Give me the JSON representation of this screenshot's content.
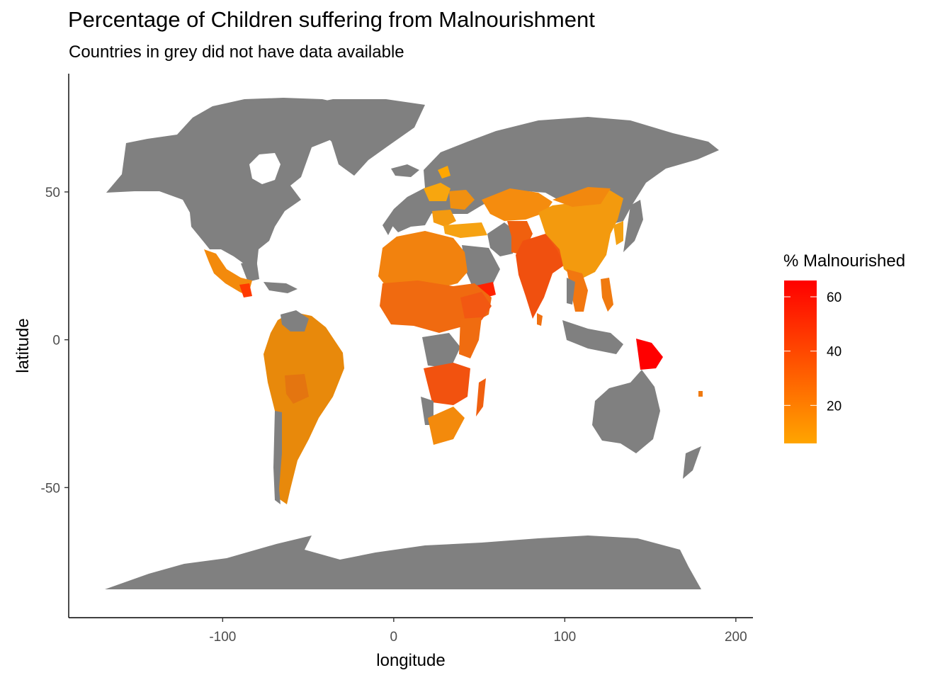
{
  "title": "Percentage of Children suffering from Malnourishment",
  "subtitle": "Countries in grey did not have data available",
  "colors": {
    "no_data": "#808080",
    "scale_low": "#FFA500",
    "scale_high": "#FF0000",
    "axis": "#000000",
    "tick_text": "#4d4d4d"
  },
  "chart_data": {
    "type": "map",
    "xlabel": "longitude",
    "ylabel": "latitude",
    "xlim": [
      -190,
      210
    ],
    "ylim": [
      -94,
      90
    ],
    "x_ticks": [
      -100,
      0,
      100,
      200
    ],
    "y_ticks": [
      50,
      0,
      -50
    ],
    "x_tick_labels": [
      "-100",
      "0",
      "100",
      "200"
    ],
    "y_tick_labels": [
      "50",
      "0",
      "-50"
    ],
    "grid": false,
    "legend": {
      "title": "% Malnourished",
      "placement": "right",
      "range": [
        6,
        66
      ],
      "ticks": [
        60,
        40,
        20
      ],
      "tick_labels": [
        "60",
        "40",
        "20"
      ]
    }
  }
}
